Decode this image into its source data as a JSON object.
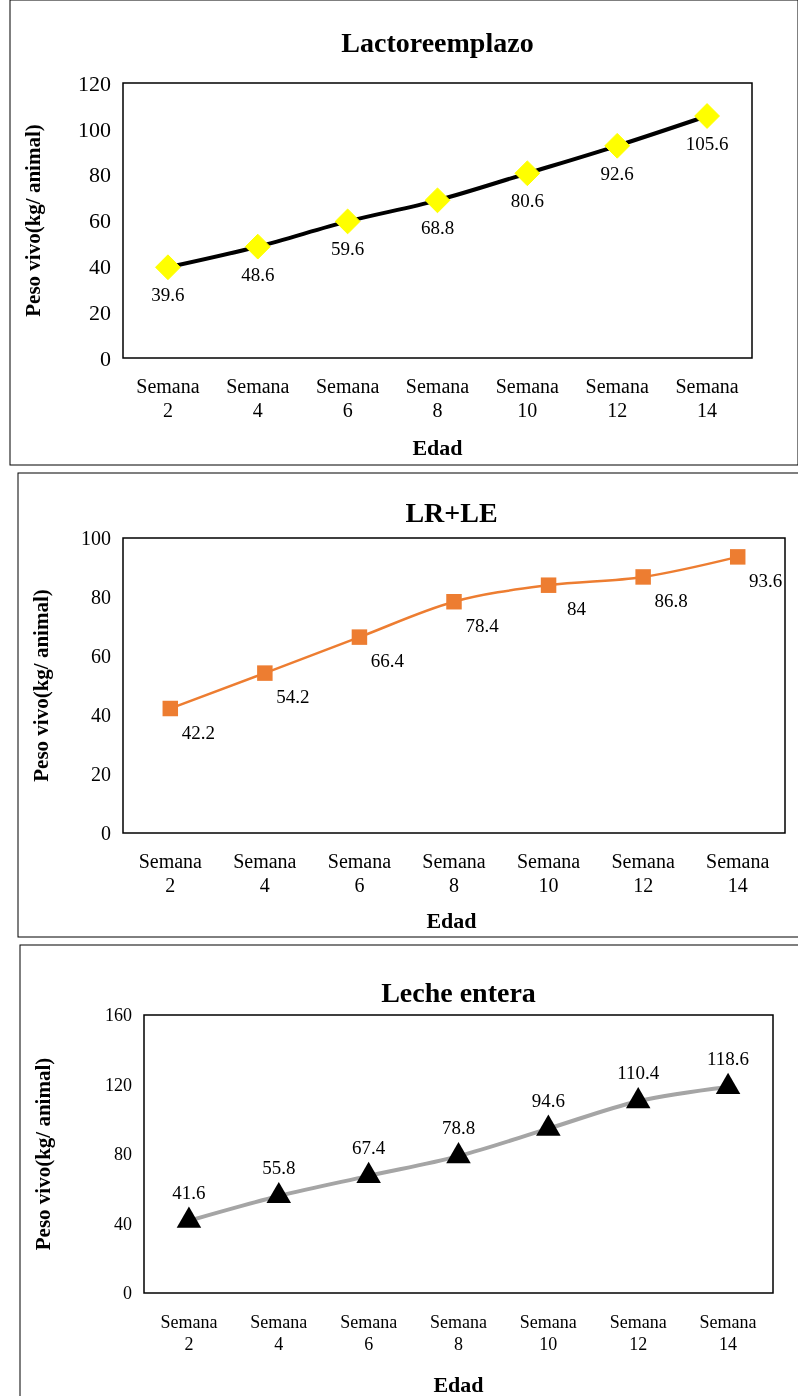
{
  "chart_data": [
    {
      "type": "line",
      "title": "Lactoreemplazo",
      "xlabel": "Edad",
      "ylabel": "Peso vivo(kg/ animal)",
      "categories": [
        "Semana 2",
        "Semana 4",
        "Semana 6",
        "Semana 8",
        "Semana 10",
        "Semana 12",
        "Semana 14"
      ],
      "series": [
        {
          "color": "#000000",
          "colors": [
            "#ffff00",
            "#ffff00",
            "#ffff00",
            "#ffff00",
            "#ffff00",
            "#ffff00",
            "#ffff00"
          ],
          "values": [
            39.6,
            48.6,
            59.6,
            68.8,
            80.6,
            92.6,
            105.6
          ]
        }
      ],
      "ylim": [
        0,
        120
      ],
      "yticks": [
        0,
        20,
        40,
        60,
        80,
        100,
        120
      ],
      "marker": "diamond",
      "data_labels": true,
      "grid": false
    },
    {
      "type": "line",
      "title": "LR+LE",
      "xlabel": "Edad",
      "ylabel": "Peso vivo(kg/ animal)",
      "categories": [
        "Semana 2",
        "Semana 4",
        "Semana 6",
        "Semana 8",
        "Semana 10",
        "Semana 12",
        "Semana 14"
      ],
      "series": [
        {
          "color": "#ed7d31",
          "values": [
            42.2,
            54.2,
            66.4,
            78.4,
            84,
            86.8,
            93.6
          ]
        }
      ],
      "ylim": [
        0,
        100
      ],
      "yticks": [
        0,
        20,
        40,
        60,
        80,
        100
      ],
      "marker": "square",
      "data_labels": true,
      "grid": false
    },
    {
      "type": "line",
      "title": "Leche entera",
      "xlabel": "Edad",
      "ylabel": "Peso vivo(kg/ animal)",
      "categories": [
        "Semana 2",
        "Semana 4",
        "Semana 6",
        "Semana 8",
        "Semana 10",
        "Semana 12",
        "Semana 14"
      ],
      "series": [
        {
          "color": "#a5a5a5",
          "colors": [
            "#000000",
            "#000000",
            "#000000",
            "#000000",
            "#000000",
            "#000000",
            "#000000"
          ],
          "values": [
            41.6,
            55.8,
            67.4,
            78.8,
            94.6,
            110.4,
            118.6
          ]
        }
      ],
      "ylim": [
        0,
        160
      ],
      "yticks": [
        0,
        40,
        80,
        120,
        160
      ],
      "marker": "triangle",
      "data_labels": true,
      "grid": false
    }
  ]
}
